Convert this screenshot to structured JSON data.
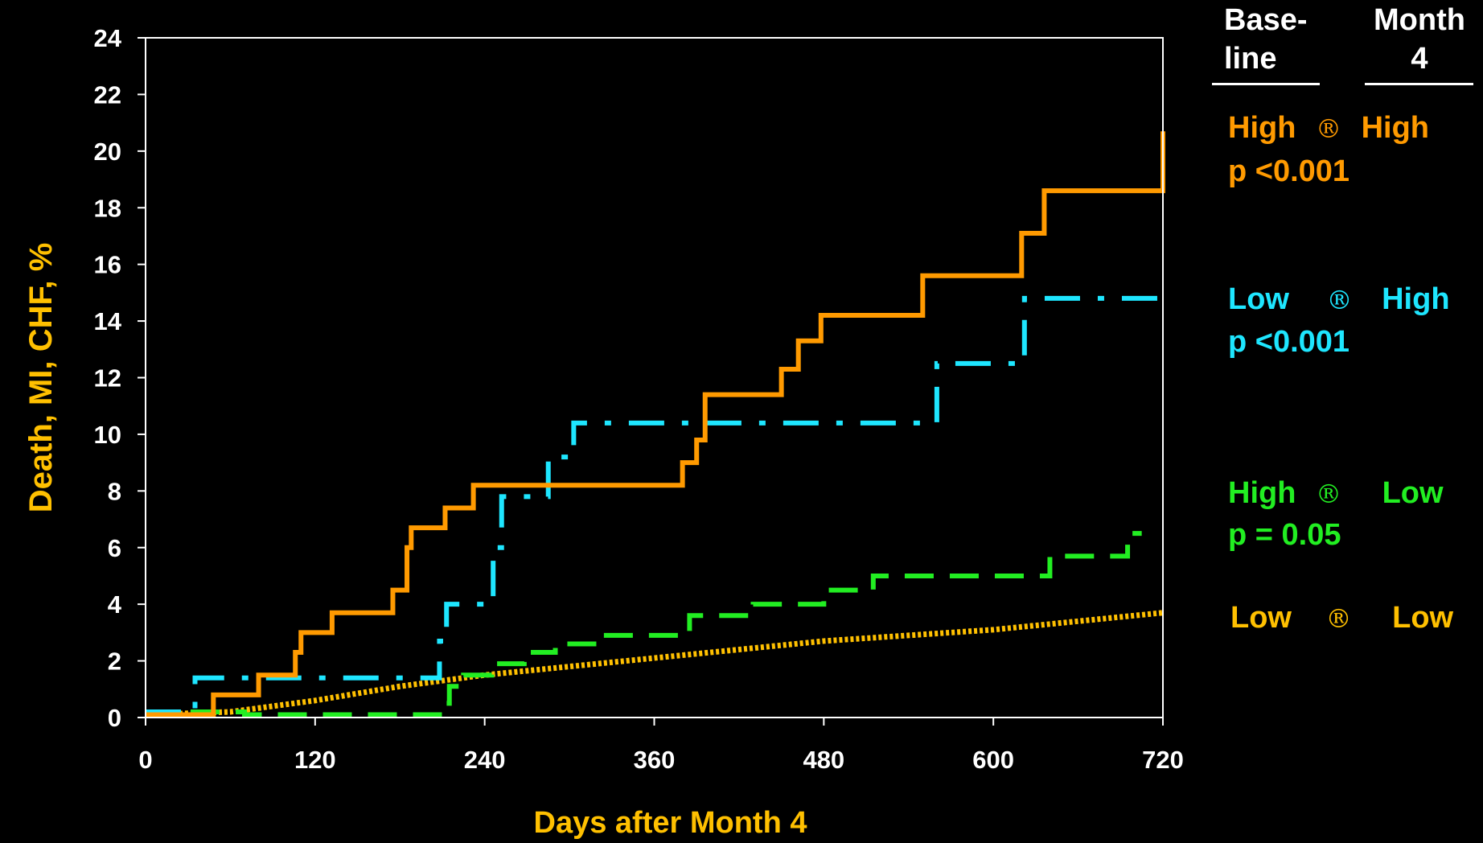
{
  "chart_data": {
    "type": "line",
    "step": true,
    "xlabel": "Days after Month 4",
    "ylabel": "Death, MI, CHF, %",
    "xlim": [
      0,
      720
    ],
    "ylim": [
      0,
      24
    ],
    "xticks": [
      0,
      120,
      240,
      360,
      480,
      600,
      720
    ],
    "yticks": [
      0,
      2,
      4,
      6,
      8,
      10,
      12,
      14,
      16,
      18,
      20,
      22,
      24
    ],
    "grid": false,
    "legend_position": "right",
    "legend_header": {
      "col1": [
        "Base-",
        "line"
      ],
      "col2": [
        "Month",
        "4"
      ]
    },
    "series": [
      {
        "name": "High ® High",
        "from": "High",
        "to": "High",
        "p": "p <0.001",
        "color": "#ff9a00",
        "style": "solid",
        "x": [
          0,
          48,
          80,
          106,
          110,
          132,
          175,
          185,
          188,
          212,
          232,
          380,
          390,
          396,
          450,
          462,
          478,
          550,
          620,
          636,
          720,
          720
        ],
        "y": [
          0.1,
          0.8,
          1.5,
          2.3,
          3.0,
          3.7,
          4.5,
          6.0,
          6.7,
          7.4,
          8.2,
          9.0,
          9.8,
          11.4,
          12.3,
          13.3,
          14.2,
          15.6,
          17.1,
          18.6,
          18.6,
          20.7
        ]
      },
      {
        "name": "Low ® High",
        "from": "Low",
        "to": "High",
        "p": "p <0.001",
        "color": "#1ee6ff",
        "style": "dashdot",
        "x": [
          0,
          35,
          208,
          213,
          246,
          252,
          285,
          303,
          560,
          622,
          720
        ],
        "y": [
          0.2,
          1.4,
          2.7,
          4.0,
          6.0,
          7.8,
          9.2,
          10.4,
          12.5,
          14.8,
          14.8
        ]
      },
      {
        "name": "High ® Low",
        "from": "High",
        "to": "Low",
        "p": "p = 0.05",
        "color": "#22ee22",
        "style": "dashed",
        "x": [
          0,
          70,
          210,
          215,
          225,
          245,
          268,
          290,
          320,
          385,
          430,
          480,
          515,
          640,
          695,
          705
        ],
        "y": [
          0.2,
          0.1,
          0.5,
          1.1,
          1.5,
          1.9,
          2.3,
          2.6,
          2.9,
          3.6,
          4.0,
          4.5,
          5.0,
          5.7,
          6.5,
          6.5
        ]
      },
      {
        "name": "Low ® Low",
        "from": "Low",
        "to": "Low",
        "p": "",
        "color": "#ffc000",
        "style": "dotted",
        "x": [
          0,
          60,
          120,
          180,
          240,
          300,
          360,
          420,
          480,
          540,
          600,
          640,
          680,
          720
        ],
        "y": [
          0.1,
          0.2,
          0.6,
          1.1,
          1.5,
          1.8,
          2.1,
          2.4,
          2.7,
          2.9,
          3.1,
          3.3,
          3.5,
          3.7
        ]
      }
    ]
  },
  "legend": {
    "arrow": "®",
    "items": [
      {
        "from": "High",
        "to": "High",
        "p": "p <0.001"
      },
      {
        "from": "Low",
        "to": "High",
        "p": "p <0.001"
      },
      {
        "from": "High",
        "to": "Low",
        "p": "p = 0.05"
      },
      {
        "from": "Low",
        "to": "Low"
      }
    ]
  }
}
